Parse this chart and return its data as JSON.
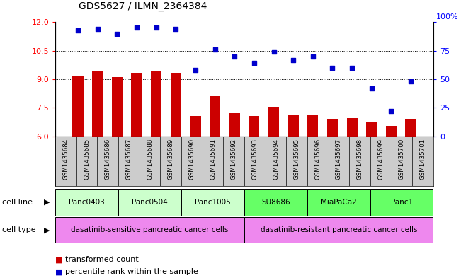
{
  "title": "GDS5627 / ILMN_2364384",
  "samples": [
    "GSM1435684",
    "GSM1435685",
    "GSM1435686",
    "GSM1435687",
    "GSM1435688",
    "GSM1435689",
    "GSM1435690",
    "GSM1435691",
    "GSM1435692",
    "GSM1435693",
    "GSM1435694",
    "GSM1435695",
    "GSM1435696",
    "GSM1435697",
    "GSM1435698",
    "GSM1435699",
    "GSM1435700",
    "GSM1435701"
  ],
  "bar_values": [
    9.2,
    9.4,
    9.1,
    9.35,
    9.4,
    9.35,
    7.05,
    8.1,
    7.2,
    7.05,
    7.55,
    7.15,
    7.15,
    6.9,
    6.95,
    6.75,
    6.55,
    6.9
  ],
  "dot_values": [
    93,
    94,
    90,
    95,
    95,
    94,
    58,
    76,
    70,
    64,
    74,
    67,
    70,
    60,
    60,
    42,
    22,
    48
  ],
  "ylim_left": [
    6,
    12
  ],
  "ylim_right": [
    0,
    100
  ],
  "yticks_left": [
    6,
    7.5,
    9,
    10.5,
    12
  ],
  "yticks_right": [
    0,
    25,
    50,
    75,
    100
  ],
  "bar_color": "#cc0000",
  "dot_color": "#0000cc",
  "cell_lines": [
    {
      "name": "Panc0403",
      "start": 0,
      "end": 2,
      "color": "#ccffcc"
    },
    {
      "name": "Panc0504",
      "start": 3,
      "end": 5,
      "color": "#ccffcc"
    },
    {
      "name": "Panc1005",
      "start": 6,
      "end": 8,
      "color": "#ccffcc"
    },
    {
      "name": "SU8686",
      "start": 9,
      "end": 11,
      "color": "#66ff66"
    },
    {
      "name": "MiaPaCa2",
      "start": 12,
      "end": 14,
      "color": "#66ff66"
    },
    {
      "name": "Panc1",
      "start": 15,
      "end": 17,
      "color": "#66ff66"
    }
  ],
  "cell_types": [
    {
      "name": "dasatinib-sensitive pancreatic cancer cells",
      "start": 0,
      "end": 8,
      "color": "#ee88ee"
    },
    {
      "name": "dasatinib-resistant pancreatic cancer cells",
      "start": 9,
      "end": 17,
      "color": "#ee88ee"
    }
  ],
  "legend_bar_label": "transformed count",
  "legend_dot_label": "percentile rank within the sample",
  "cell_line_label": "cell line",
  "cell_type_label": "cell type",
  "right_axis_top_label": "100%",
  "xlabel_bg_color": "#cccccc"
}
